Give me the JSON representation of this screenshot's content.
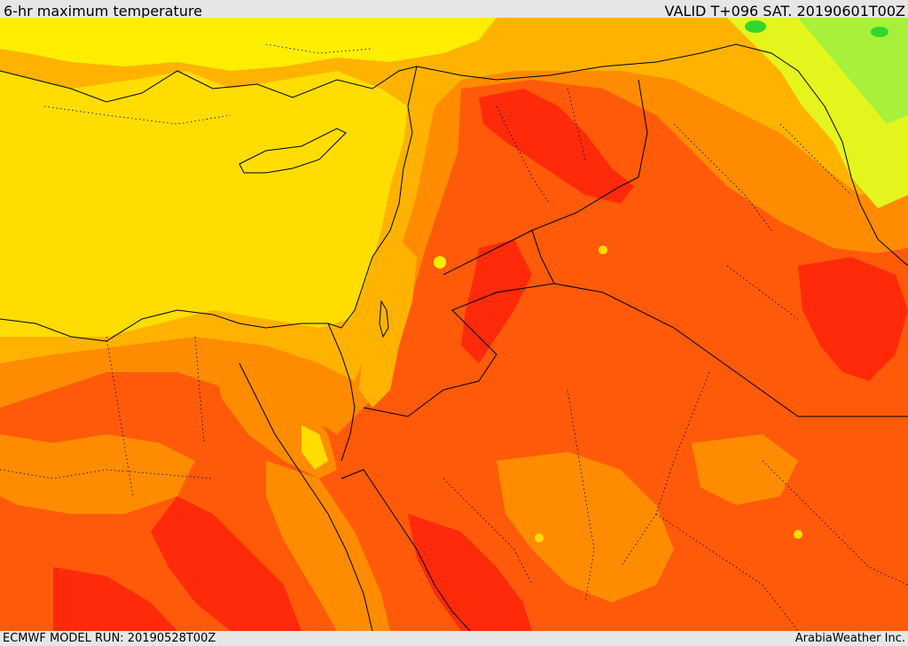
{
  "header": {
    "title": "6-hr maximum temperature",
    "valid_time": "VALID T+096 SAT. 20190601T00Z"
  },
  "footer": {
    "model_run": "ECMWF MODEL RUN: 20190528T00Z",
    "credit": "ArabiaWeather Inc."
  },
  "palette": {
    "green": "#33d62e",
    "light_green": "#a8f03a",
    "yellow_green": "#e4f51e",
    "bright_yellow": "#ffee00",
    "yellow": "#ffdd00",
    "light_orange": "#ffb300",
    "orange": "#ff8c00",
    "dark_orange": "#ff5a0a",
    "red": "#ff2a0a",
    "border_line": "#000000"
  }
}
